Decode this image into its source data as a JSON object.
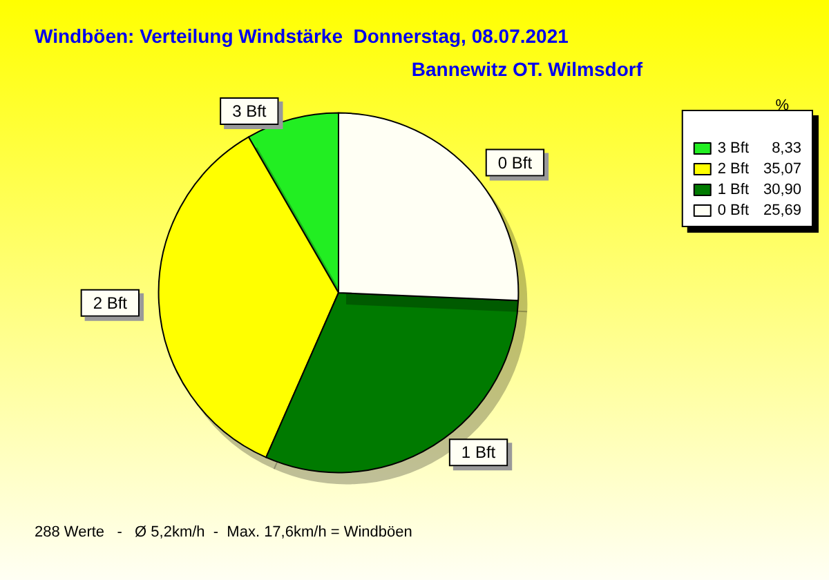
{
  "chart_data": {
    "type": "pie",
    "title": "Windböen: Verteilung Windstärke  Donnerstag, 08.07.2021",
    "subtitle": "Bannewitz OT. Wilmsdorf",
    "categories": [
      "3 Bft",
      "2 Bft",
      "1 Bft",
      "0 Bft"
    ],
    "values": [
      8.33,
      35.07,
      30.9,
      25.69
    ],
    "value_labels": [
      "8,33",
      "35,07",
      "30,90",
      "25,69"
    ],
    "colors": [
      "#22ee22",
      "#ffff00",
      "#007a00",
      "#fffff4"
    ],
    "legend": "top right",
    "legend_title": "%",
    "annotations": [
      "288 Werte   -   Ø 5,2km/h  -  Max. 17,6km/h = Windböen"
    ]
  }
}
